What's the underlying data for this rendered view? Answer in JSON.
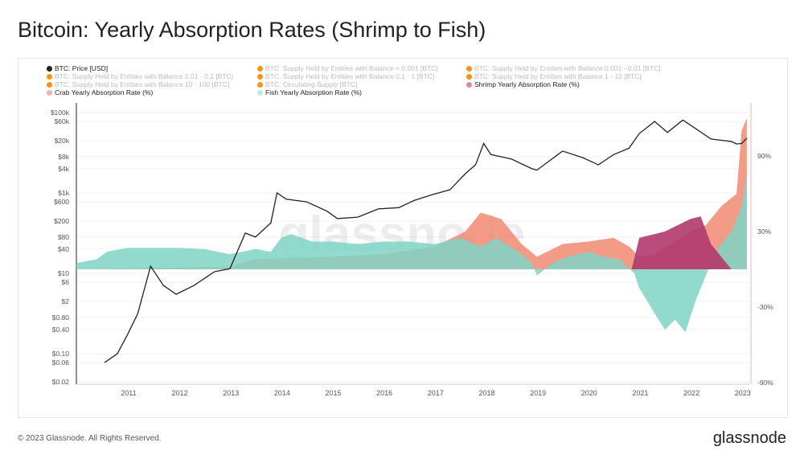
{
  "title": "Bitcoin: Yearly Absorption Rates (Shrimp to Fish)",
  "footer": "© 2023 Glassnode. All Rights Reserved.",
  "brand": "glassnode",
  "watermark": "glassnode",
  "legend": [
    {
      "label": "BTC: Price [USD]",
      "color": "#222222",
      "active": true
    },
    {
      "label": "BTC: Supply Held by Entities with Balance < 0.001 [BTC]",
      "color": "#f7931a",
      "active": false
    },
    {
      "label": "BTC: Supply Held by Entities with Balance 0.001 - 0.01 [BTC]",
      "color": "#f7931a",
      "active": false
    },
    {
      "label": "BTC: Supply Held by Entities with Balance 0.01 - 0.1 [BTC]",
      "color": "#f7931a",
      "active": false
    },
    {
      "label": "BTC: Supply Held by Entities with Balance 0.1 - 1 [BTC]",
      "color": "#f7931a",
      "active": false
    },
    {
      "label": "BTC: Supply Held by Entities with Balance 1 - 10 [BTC]",
      "color": "#f7931a",
      "active": false
    },
    {
      "label": "BTC: Supply Held by Entities with Balance 10 - 100 [BTC]",
      "color": "#f7931a",
      "active": false
    },
    {
      "label": "BTC: Circulating Supply [BTC]",
      "color": "#f7931a",
      "active": false
    },
    {
      "label": "Shrimp Yearly Absorption Rate (%)",
      "color": "#d889b0",
      "active": true
    },
    {
      "label": "Crab Yearly Absorption Rate (%)",
      "color": "#f4b3a6",
      "active": true
    },
    {
      "label": "Fish Yearly Absorption Rate (%)",
      "color": "#bfe8e1",
      "active": true
    }
  ],
  "chart_data": {
    "type": "area",
    "title": "Bitcoin: Yearly Absorption Rates (Shrimp to Fish)",
    "x_ticks": [
      "2011",
      "2012",
      "2013",
      "2014",
      "2015",
      "2016",
      "2017",
      "2018",
      "2019",
      "2020",
      "2021",
      "2022",
      "2023"
    ],
    "y_left_ticks": [
      "$100k",
      "$60k",
      "$20k",
      "$8k",
      "$4k",
      "$1k",
      "$600",
      "$200",
      "$80",
      "$40",
      "$10",
      "$6",
      "$2",
      "$0.80",
      "$0.40",
      "$0.10",
      "$0.06",
      "$0.02"
    ],
    "y_left_values": [
      100000,
      60000,
      20000,
      8000,
      4000,
      1000,
      600,
      200,
      80,
      40,
      10,
      6,
      2,
      0.8,
      0.4,
      0.1,
      0.06,
      0.02
    ],
    "y_left_scale": "log",
    "y_left_range": [
      0.02,
      100000
    ],
    "y_right_ticks": [
      "90%",
      "30%",
      "-30%",
      "-90%"
    ],
    "y_right_values": [
      90,
      30,
      -30,
      -90
    ],
    "y_right_range": [
      -90,
      130
    ],
    "xlim": [
      2010.0,
      2023.15
    ],
    "legend_position": "top",
    "series": [
      {
        "name": "BTC: Price [USD]",
        "axis": "left",
        "type": "line",
        "color": "#222222",
        "x": [
          2010.55,
          2010.8,
          2011.0,
          2011.2,
          2011.45,
          2011.7,
          2011.95,
          2012.3,
          2012.7,
          2013.0,
          2013.3,
          2013.5,
          2013.8,
          2013.92,
          2014.1,
          2014.5,
          2014.9,
          2015.1,
          2015.5,
          2015.9,
          2016.3,
          2016.6,
          2016.95,
          2017.3,
          2017.6,
          2017.8,
          2017.96,
          2018.1,
          2018.5,
          2018.9,
          2019.0,
          2019.5,
          2019.9,
          2020.2,
          2020.5,
          2020.8,
          2021.0,
          2021.3,
          2021.55,
          2021.85,
          2022.1,
          2022.4,
          2022.8,
          2022.9,
          2023.0,
          2023.1
        ],
        "y": [
          0.06,
          0.1,
          0.3,
          1,
          15,
          5,
          3,
          5,
          11,
          13,
          100,
          80,
          180,
          1000,
          700,
          600,
          350,
          230,
          250,
          400,
          430,
          650,
          900,
          1200,
          3000,
          5000,
          17000,
          9000,
          7000,
          4000,
          3700,
          11000,
          7500,
          5000,
          9000,
          13000,
          30000,
          60000,
          32000,
          65000,
          40000,
          22000,
          19000,
          16500,
          17000,
          23000
        ]
      },
      {
        "name": "Crab Yearly Absorption Rate (%)",
        "axis": "right",
        "type": "area",
        "color": "#f08a72",
        "x": [
          2010.0,
          2013.0,
          2013.5,
          2015.0,
          2016.0,
          2017.0,
          2017.6,
          2017.9,
          2018.3,
          2018.7,
          2019.0,
          2019.5,
          2020.0,
          2020.5,
          2020.8,
          2021.0,
          2021.3,
          2021.6,
          2022.0,
          2022.3,
          2022.6,
          2022.9,
          2023.0,
          2023.1
        ],
        "y": [
          0,
          2,
          8,
          10,
          12,
          18,
          30,
          45,
          40,
          20,
          10,
          20,
          22,
          25,
          18,
          10,
          12,
          20,
          30,
          35,
          50,
          60,
          110,
          120
        ]
      },
      {
        "name": "Fish Yearly Absorption Rate (%)",
        "axis": "right",
        "type": "area",
        "color": "#7fd3c4",
        "x": [
          2010.0,
          2010.4,
          2010.6,
          2011.0,
          2011.5,
          2012.0,
          2012.5,
          2013.0,
          2013.5,
          2013.8,
          2014.0,
          2014.2,
          2014.6,
          2015.0,
          2015.5,
          2016.0,
          2016.5,
          2017.0,
          2017.5,
          2017.9,
          2018.2,
          2018.6,
          2018.9,
          2019.0,
          2019.3,
          2019.6,
          2020.0,
          2020.3,
          2020.6,
          2020.9,
          2021.0,
          2021.3,
          2021.5,
          2021.7,
          2021.9,
          2022.1,
          2022.3,
          2022.5,
          2022.8,
          2023.0,
          2023.1
        ],
        "y": [
          5,
          8,
          14,
          17,
          17,
          17,
          16,
          12,
          16,
          14,
          25,
          28,
          22,
          22,
          20,
          22,
          22,
          20,
          25,
          18,
          25,
          15,
          5,
          -5,
          5,
          10,
          14,
          10,
          8,
          -3,
          -15,
          -35,
          -48,
          -40,
          -50,
          -25,
          -5,
          15,
          30,
          50,
          75
        ]
      },
      {
        "name": "Shrimp Yearly Absorption Rate (%)",
        "axis": "right",
        "type": "area",
        "color": "#b03a6e",
        "x": [
          2020.85,
          2021.0,
          2021.5,
          2022.0,
          2022.2,
          2022.4,
          2022.6,
          2022.8
        ],
        "y": [
          0,
          25,
          30,
          40,
          42,
          20,
          10,
          0
        ]
      }
    ]
  }
}
